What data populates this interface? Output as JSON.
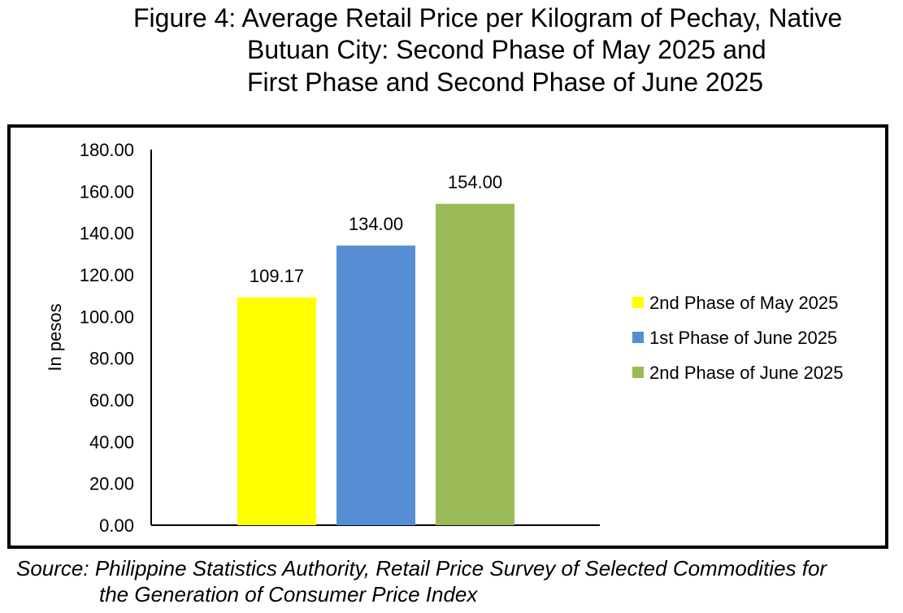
{
  "title_lines": [
    "Figure 4: Average Retail Price per Kilogram of Pechay, Native",
    "Butuan City: Second Phase of May 2025 and",
    "First Phase and Second Phase of June 2025"
  ],
  "source_lines": [
    "Source: Philippine Statistics Authority, Retail Price Survey of Selected Commodities for",
    "the Generation of Consumer Price Index"
  ],
  "chart_data": {
    "type": "bar",
    "title": "Figure 4: Average Retail Price per Kilogram of Pechay, Native Butuan City: Second Phase of May 2025 and First Phase and Second Phase of June 2025",
    "ylabel": "In pesos",
    "xlabel": "",
    "ylim": [
      0,
      180
    ],
    "yticks": [
      "0.00",
      "20.00",
      "40.00",
      "60.00",
      "80.00",
      "100.00",
      "120.00",
      "140.00",
      "160.00",
      "180.00"
    ],
    "grid": false,
    "legend_position": "right",
    "series": [
      {
        "name": "2nd Phase of May 2025",
        "value": 109.17,
        "label": "109.17",
        "color": "#FFFF00"
      },
      {
        "name": "1st Phase of June 2025",
        "value": 134.0,
        "label": "134.00",
        "color": "#558ED5"
      },
      {
        "name": "2nd Phase of June 2025",
        "value": 154.0,
        "label": "154.00",
        "color": "#9BBB59"
      }
    ]
  }
}
